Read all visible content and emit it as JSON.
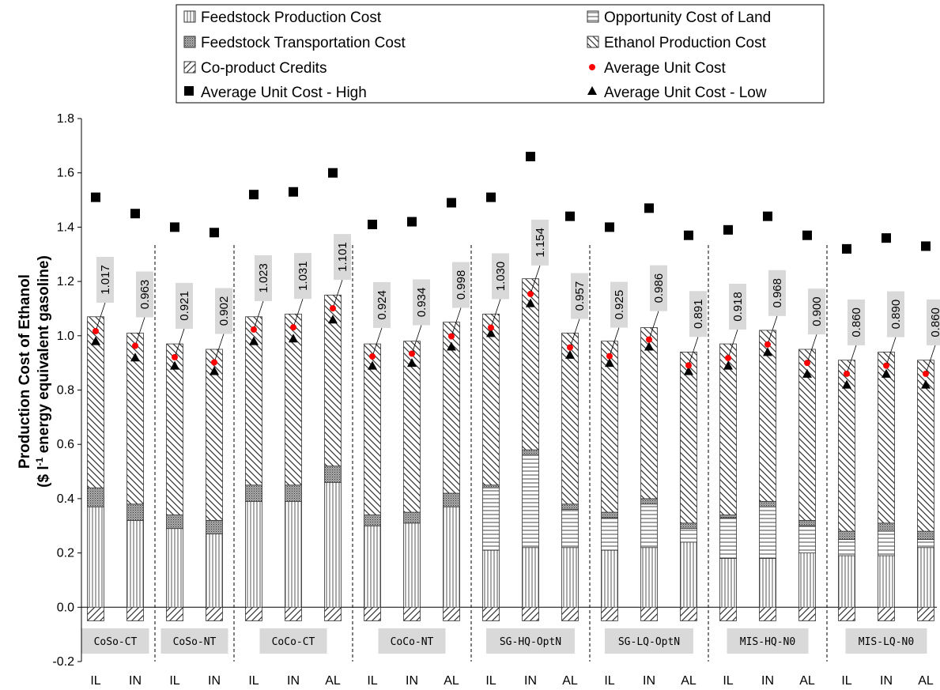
{
  "chart_data": {
    "type": "bar",
    "ylabel_line1": "Production Cost of Ethanol",
    "ylabel_line2_prefix": "($ l",
    "ylabel_line2_sup": "-1",
    "ylabel_line2_suffix": " energy equivalent gasoline)",
    "ylim": [
      -0.2,
      1.8
    ],
    "yticks": [
      "-0.2",
      "0.0",
      "0.2",
      "0.4",
      "0.6",
      "0.8",
      "1.0",
      "1.2",
      "1.4",
      "1.6",
      "1.8"
    ],
    "legend": {
      "feedstock_production": "Feedstock Production Cost",
      "feedstock_transportation": "Feedstock Transportation Cost",
      "coproduct_credits": "Co-product Credits",
      "average_high": "Average Unit Cost - High",
      "opportunity_land": "Opportunity Cost of Land",
      "ethanol_production": "Ethanol Production Cost",
      "average": "Average Unit Cost",
      "average_low": "Average Unit Cost - Low"
    },
    "groups": [
      {
        "label": "CoSo-CT",
        "count": 2
      },
      {
        "label": "CoSo-NT",
        "count": 2
      },
      {
        "label": "CoCo-CT",
        "count": 3
      },
      {
        "label": "CoCo-NT",
        "count": 3
      },
      {
        "label": "SG-HQ-OptN",
        "count": 3
      },
      {
        "label": "SG-LQ-OptN",
        "count": 3
      },
      {
        "label": "MIS-HQ-N0",
        "count": 3
      },
      {
        "label": "MIS-LQ-N0",
        "count": 3
      }
    ],
    "categories": [
      "IL",
      "IN",
      "IL",
      "IN",
      "IL",
      "IN",
      "AL",
      "IL",
      "IN",
      "AL",
      "IL",
      "IN",
      "AL",
      "IL",
      "IN",
      "AL",
      "IL",
      "IN",
      "AL",
      "IL",
      "IN",
      "AL"
    ],
    "series": [
      {
        "key": "feedstock_production",
        "values": [
          0.37,
          0.32,
          0.29,
          0.27,
          0.39,
          0.39,
          0.46,
          0.3,
          0.31,
          0.37,
          0.21,
          0.22,
          0.22,
          0.21,
          0.22,
          0.24,
          0.18,
          0.18,
          0.2,
          0.19,
          0.19,
          0.22
        ]
      },
      {
        "key": "opportunity_land",
        "values": [
          0,
          0,
          0,
          0,
          0,
          0,
          0,
          0,
          0,
          0,
          0.23,
          0.34,
          0.14,
          0.12,
          0.16,
          0.05,
          0.15,
          0.19,
          0.1,
          0.06,
          0.09,
          0.03
        ]
      },
      {
        "key": "feedstock_transportation",
        "values": [
          0.07,
          0.06,
          0.05,
          0.05,
          0.06,
          0.06,
          0.06,
          0.04,
          0.04,
          0.05,
          0.01,
          0.02,
          0.02,
          0.02,
          0.02,
          0.02,
          0.01,
          0.02,
          0.02,
          0.03,
          0.03,
          0.03
        ]
      },
      {
        "key": "ethanol_production",
        "values": [
          0.63,
          0.63,
          0.63,
          0.63,
          0.62,
          0.63,
          0.63,
          0.63,
          0.63,
          0.63,
          0.63,
          0.63,
          0.63,
          0.63,
          0.63,
          0.63,
          0.63,
          0.63,
          0.63,
          0.63,
          0.63,
          0.63
        ]
      },
      {
        "key": "coproduct_credits",
        "values": [
          -0.05,
          -0.05,
          -0.05,
          -0.05,
          -0.05,
          -0.05,
          -0.05,
          -0.05,
          -0.05,
          -0.05,
          -0.05,
          -0.05,
          -0.05,
          -0.05,
          -0.05,
          -0.05,
          -0.05,
          -0.05,
          -0.05,
          -0.05,
          -0.05,
          -0.05
        ]
      }
    ],
    "average_unit_cost": [
      1.017,
      0.963,
      0.921,
      0.902,
      1.023,
      1.031,
      1.101,
      0.924,
      0.934,
      0.998,
      1.03,
      1.154,
      0.957,
      0.925,
      0.986,
      0.891,
      0.918,
      0.968,
      0.9,
      0.86,
      0.89,
      0.86
    ],
    "average_labels": [
      "1.017",
      "0.963",
      "0.921",
      "0.902",
      "1.023",
      "1.031",
      "1.101",
      "0.924",
      "0.934",
      "0.998",
      "1.030",
      "1.154",
      "0.957",
      "0.925",
      "0.986",
      "0.891",
      "0.918",
      "0.968",
      "0.900",
      "0.860",
      "0.890",
      "0.860"
    ],
    "average_high": [
      1.51,
      1.45,
      1.4,
      1.38,
      1.52,
      1.53,
      1.6,
      1.41,
      1.42,
      1.49,
      1.51,
      1.66,
      1.44,
      1.4,
      1.47,
      1.37,
      1.39,
      1.44,
      1.37,
      1.32,
      1.36,
      1.33
    ],
    "average_low": [
      0.98,
      0.92,
      0.89,
      0.87,
      0.98,
      0.99,
      1.06,
      0.89,
      0.9,
      0.96,
      1.01,
      1.12,
      0.93,
      0.9,
      0.96,
      0.87,
      0.89,
      0.94,
      0.86,
      0.82,
      0.86,
      0.82
    ],
    "grid": false,
    "legend_position": "top",
    "colors": {
      "average_marker": "#ff0000",
      "label_box": "#d9d9d9",
      "label_box_group": "#d9d9d9"
    }
  }
}
